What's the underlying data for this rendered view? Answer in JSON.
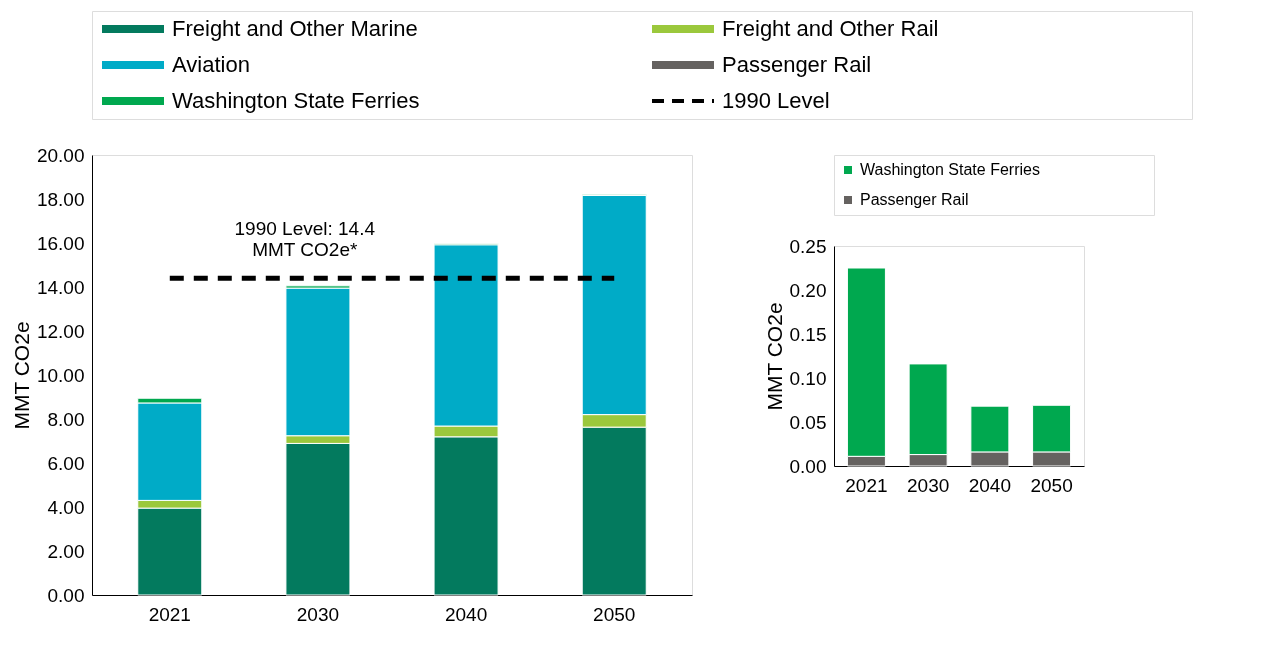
{
  "chart_data": [
    {
      "type": "bar",
      "stacked": true,
      "ylabel": "MMT CO2e",
      "categories": [
        "2021",
        "2030",
        "2040",
        "2050"
      ],
      "ylim": [
        0,
        20
      ],
      "yticks": [
        {
          "value": 0,
          "label": "0.00"
        },
        {
          "value": 2,
          "label": "2.00"
        },
        {
          "value": 4,
          "label": "4.00"
        },
        {
          "value": 6,
          "label": "6.00"
        },
        {
          "value": 8,
          "label": "8.00"
        },
        {
          "value": 10,
          "label": "10.00"
        },
        {
          "value": 12,
          "label": "12.00"
        },
        {
          "value": 14,
          "label": "14.00"
        },
        {
          "value": 16,
          "label": "16.00"
        },
        {
          "value": 18,
          "label": "18.00"
        },
        {
          "value": 20,
          "label": "20.00"
        }
      ],
      "series": [
        {
          "name": "Freight and Other Marine",
          "color": "#037a5e",
          "values": [
            3.95,
            6.89,
            7.19,
            7.63
          ]
        },
        {
          "name": "Freight and Other Rail",
          "color": "#9bc83c",
          "values": [
            0.35,
            0.35,
            0.49,
            0.57
          ]
        },
        {
          "name": "Aviation",
          "color": "#00abc7",
          "values": [
            4.43,
            6.71,
            8.24,
            9.96
          ]
        },
        {
          "name": "Passenger Rail",
          "color": "#656260",
          "values": [
            null,
            null,
            null,
            null
          ]
        },
        {
          "name": "Washington State Ferries",
          "color": "#00a84f",
          "values": [
            0.214,
            0.103,
            0.052,
            0.053
          ]
        }
      ],
      "ref_lines": [
        {
          "axis": "y",
          "value": 14.4,
          "label": "1990 Level",
          "color": "#000000",
          "line_style": "dashed"
        }
      ],
      "annotations": [
        "1990 Level: 14.4\nMMT CO2e*"
      ],
      "legend": "top",
      "grid": false
    },
    {
      "type": "bar",
      "stacked": true,
      "ylabel": "MMT CO2e",
      "categories": [
        "2021",
        "2030",
        "2040",
        "2050"
      ],
      "ylim": [
        0,
        0.25
      ],
      "yticks": [
        {
          "value": 0,
          "label": "0.00"
        },
        {
          "value": 0.05,
          "label": "0.05"
        },
        {
          "value": 0.1,
          "label": "0.10"
        },
        {
          "value": 0.15,
          "label": "0.15"
        },
        {
          "value": 0.2,
          "label": "0.20"
        },
        {
          "value": 0.25,
          "label": "0.25"
        }
      ],
      "series": [
        {
          "name": "Passenger Rail",
          "color": "#656260",
          "values": [
            0.011,
            0.013,
            0.016,
            0.016
          ]
        },
        {
          "name": "Washington State Ferries",
          "color": "#00a84f",
          "values": [
            0.214,
            0.103,
            0.052,
            0.053
          ]
        }
      ],
      "legend": "top",
      "grid": false
    }
  ]
}
